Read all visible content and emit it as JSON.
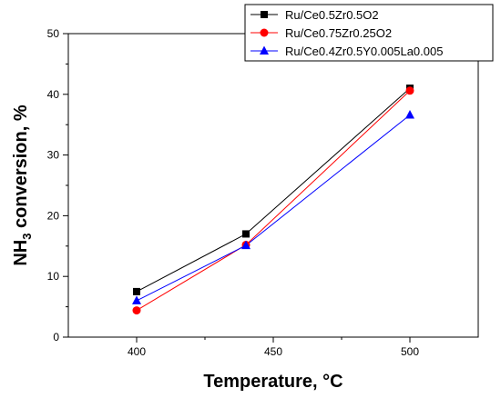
{
  "chart_data": {
    "type": "line",
    "xlabel": "Temperature, °C",
    "ylabel_parts": {
      "before": "NH",
      "sub": "3",
      "after": " conversion, %"
    },
    "xlim": [
      375,
      525
    ],
    "ylim": [
      0,
      50
    ],
    "x_ticks": [
      400,
      450,
      500
    ],
    "y_ticks": [
      0,
      10,
      20,
      30,
      40,
      50
    ],
    "x": [
      400,
      440,
      500
    ],
    "grid": false,
    "legend_position": "top-right",
    "series": [
      {
        "name": "Ru/Ce0.5Zr0.5O2",
        "color": "#000000",
        "marker": "square",
        "values": [
          7.5,
          17.0,
          41.0
        ]
      },
      {
        "name": "Ru/Ce0.75Zr0.25O2",
        "color": "#ff0000",
        "marker": "circle",
        "values": [
          4.4,
          15.2,
          40.6
        ]
      },
      {
        "name": "Ru/Ce0.4Zr0.5Y0.005La0.005",
        "color": "#0000ff",
        "marker": "triangle",
        "values": [
          6.0,
          15.1,
          36.6
        ]
      }
    ]
  }
}
